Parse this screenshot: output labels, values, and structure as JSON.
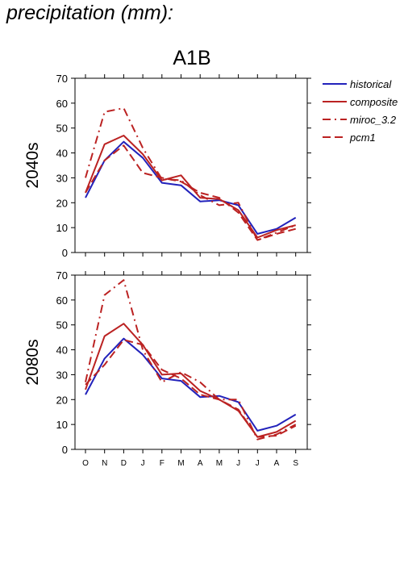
{
  "page": {
    "title": "precipitation (mm):"
  },
  "chart_data": {
    "type": "line",
    "title": "A1B",
    "categories": [
      "O",
      "N",
      "D",
      "J",
      "F",
      "M",
      "A",
      "M",
      "J",
      "J",
      "A",
      "S"
    ],
    "ylim": [
      0,
      70
    ],
    "yticks": [
      0,
      10,
      20,
      30,
      40,
      50,
      60,
      70
    ],
    "legend": {
      "position": "right",
      "entries": [
        {
          "label": "historical",
          "color": "#2222bb",
          "style": "solid"
        },
        {
          "label": "composite",
          "color": "#bb2222",
          "style": "solid"
        },
        {
          "label": "miroc_3.2",
          "color": "#bb2222",
          "style": "dashdot"
        },
        {
          "label": "pcm1",
          "color": "#bb2222",
          "style": "dashed"
        }
      ]
    },
    "panels": [
      {
        "ylabel": "2040s",
        "series": [
          {
            "name": "historical",
            "values": [
              22,
              37,
              44.5,
              38,
              28,
              27,
              20.5,
              21,
              19,
              7.5,
              9.5,
              14
            ]
          },
          {
            "name": "composite",
            "values": [
              24,
              43.5,
              47,
              39.5,
              29,
              31,
              22,
              21.5,
              17,
              6,
              9,
              11
            ]
          },
          {
            "name": "miroc_3.2",
            "values": [
              30,
              56.5,
              58,
              42,
              29.5,
              29,
              23,
              19,
              20,
              5,
              8,
              11
            ]
          },
          {
            "name": "pcm1",
            "values": [
              24,
              37,
              43,
              32,
              30,
              28.5,
              24,
              22,
              16,
              5,
              7.5,
              9.5
            ]
          }
        ]
      },
      {
        "ylabel": "2080s",
        "series": [
          {
            "name": "historical",
            "values": [
              22,
              36.5,
              44.5,
              38,
              28.5,
              27.5,
              21,
              21.5,
              19,
              7.5,
              9.5,
              14
            ]
          },
          {
            "name": "composite",
            "values": [
              24,
              45.5,
              50.5,
              42,
              30,
              30.5,
              23.5,
              20,
              15.5,
              5,
              7,
              11.5
            ]
          },
          {
            "name": "miroc_3.2",
            "values": [
              27,
              62,
              68,
              40,
              27,
              31,
              27,
              20,
              20,
              4,
              6,
              10
            ]
          },
          {
            "name": "pcm1",
            "values": [
              26,
              34,
              44,
              42,
              32,
              28.5,
              22,
              20,
              16,
              5,
              5.5,
              9.5
            ]
          }
        ]
      }
    ]
  }
}
